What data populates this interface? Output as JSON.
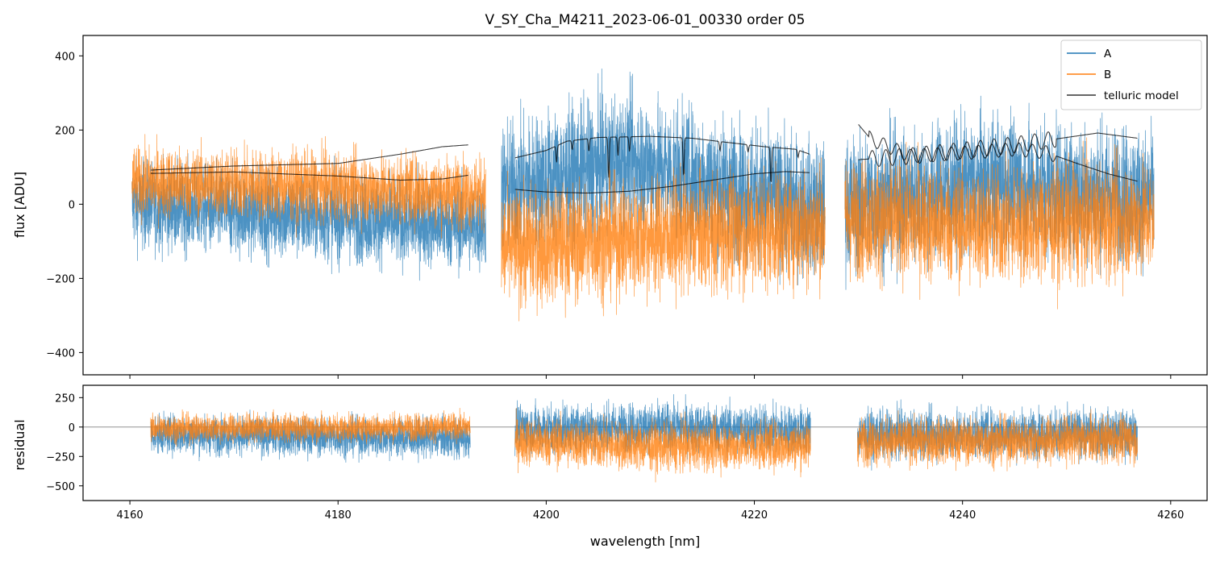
{
  "title": "V_SY_Cha_M4211_2023-06-01_00330  order 05",
  "colors": {
    "A": "#1f77b4",
    "B": "#ff7f0e",
    "telluric": "#000000",
    "zero_line": "#808080",
    "axis": "#000000"
  },
  "chart_data": [
    {
      "type": "line",
      "panel": "flux",
      "title": "V_SY_Cha_M4211_2023-06-01_00330  order 05",
      "ylabel": "flux [ADU]",
      "xlabel": "",
      "xlim": [
        4155.5,
        4263.5
      ],
      "ylim": [
        -460,
        455
      ],
      "xticks": [
        4160,
        4180,
        4200,
        4220,
        4240,
        4260
      ],
      "yticks": [
        -400,
        -200,
        0,
        200,
        400
      ],
      "ytick_labels": [
        "−400",
        "−200",
        "0",
        "200",
        "400"
      ],
      "legend": {
        "position": "top-right",
        "entries": [
          "A",
          "B",
          "telluric model"
        ]
      },
      "segments": [
        {
          "x_range": [
            4160.2,
            4194.2
          ],
          "series": {
            "A": {
              "center": [
                [
                  4160.2,
                  0
                ],
                [
                  4175,
                  -30
                ],
                [
                  4194.2,
                  -60
                ]
              ],
              "amplitude": 150
            },
            "B": {
              "center": [
                [
                  4160.2,
                  60
                ],
                [
                  4175,
                  50
                ],
                [
                  4194.2,
                  30
                ]
              ],
              "amplitude": 120
            }
          }
        },
        {
          "x_range": [
            4195.7,
            4226.8
          ],
          "series": {
            "A": {
              "center": [
                [
                  4195.7,
                  40
                ],
                [
                  4208,
                  120
                ],
                [
                  4226.8,
                  -20
                ]
              ],
              "amplitude": 230
            },
            "B": {
              "center": [
                [
                  4195.7,
                  -120
                ],
                [
                  4208,
                  -90
                ],
                [
                  4226.8,
                  -60
                ]
              ],
              "amplitude": 200
            }
          }
        },
        {
          "x_range": [
            4228.7,
            4258.4
          ],
          "series": {
            "A": {
              "center": [
                [
                  4228.7,
                  0
                ],
                [
                  4243,
                  60
                ],
                [
                  4258.4,
                  20
                ]
              ],
              "amplitude": 230
            },
            "B": {
              "center": [
                [
                  4228.7,
                  -40
                ],
                [
                  4243,
                  -60
                ],
                [
                  4258.4,
                  -40
                ]
              ],
              "amplitude": 200
            }
          }
        }
      ],
      "telluric_model": [
        {
          "upper": [
            [
              4162,
              92
            ],
            [
              4170,
              103
            ],
            [
              4180,
              110
            ],
            [
              4186,
              135
            ],
            [
              4190,
              155
            ],
            [
              4192.5,
              160
            ]
          ],
          "lower": [
            [
              4162,
              83
            ],
            [
              4170,
              87
            ],
            [
              4180,
              76
            ],
            [
              4186,
              65
            ],
            [
              4190,
              68
            ],
            [
              4192.5,
              78
            ]
          ],
          "lines": []
        },
        {
          "upper": [
            [
              4197,
              125
            ],
            [
              4200,
              145
            ],
            [
              4202,
              170
            ],
            [
              4205,
              180
            ],
            [
              4210,
              183
            ],
            [
              4214,
              178
            ],
            [
              4217,
              168
            ],
            [
              4221,
              155
            ],
            [
              4224,
              148
            ],
            [
              4225.3,
              135
            ]
          ],
          "lower": [
            [
              4197,
              40
            ],
            [
              4200,
              33
            ],
            [
              4204,
              30
            ],
            [
              4208,
              35
            ],
            [
              4212,
              48
            ],
            [
              4216,
              65
            ],
            [
              4220,
              82
            ],
            [
              4223,
              88
            ],
            [
              4225.3,
              85
            ]
          ],
          "lines": [
            {
              "x": 4201.0,
              "depth": 45
            },
            {
              "x": 4202.5,
              "depth": 25
            },
            {
              "x": 4204.1,
              "depth": 35
            },
            {
              "x": 4206.0,
              "depth": 110
            },
            {
              "x": 4206.9,
              "depth": 50
            },
            {
              "x": 4208.0,
              "depth": 40
            },
            {
              "x": 4213.2,
              "depth": 105
            },
            {
              "x": 4216.7,
              "depth": 25
            },
            {
              "x": 4219.4,
              "depth": 20
            },
            {
              "x": 4221.6,
              "depth": 100
            },
            {
              "x": 4224.2,
              "depth": 20
            }
          ]
        },
        {
          "upper": [
            [
              4230,
              120
            ],
            [
              4235,
              130
            ],
            [
              4240,
              145
            ],
            [
              4245,
              160
            ],
            [
              4250,
              180
            ],
            [
              4253,
              192
            ],
            [
              4256.8,
              178
            ]
          ],
          "lower": [
            [
              4230,
              215
            ],
            [
              4231.2,
              175
            ],
            [
              4235,
              130
            ],
            [
              4240,
              138
            ],
            [
              4245,
              148
            ],
            [
              4248,
              140
            ],
            [
              4251,
              110
            ],
            [
              4254,
              82
            ],
            [
              4256.8,
              62
            ]
          ],
          "lines": []
        }
      ]
    },
    {
      "type": "line",
      "panel": "residual",
      "title": "",
      "ylabel": "residual",
      "xlabel": "wavelength [nm]",
      "xlim": [
        4155.5,
        4263.5
      ],
      "ylim": [
        -625,
        355
      ],
      "xticks": [
        4160,
        4180,
        4200,
        4220,
        4240,
        4260
      ],
      "xtick_labels": [
        "4160",
        "4180",
        "4200",
        "4220",
        "4240",
        "4260"
      ],
      "yticks": [
        -500,
        -250,
        0,
        250
      ],
      "ytick_labels": [
        "−500",
        "−250",
        "0",
        "250"
      ],
      "zero_line": 0,
      "segments": [
        {
          "x_range": [
            4162.0,
            4192.7
          ],
          "series": {
            "A": {
              "center": [
                [
                  4162,
                  -60
                ],
                [
                  4177,
                  -80
                ],
                [
                  4192.7,
                  -100
                ]
              ],
              "amplitude": 210
            },
            "B": {
              "center": [
                [
                  4162,
                  -10
                ],
                [
                  4177,
                  -5
                ],
                [
                  4192.7,
                  0
                ]
              ],
              "amplitude": 150
            }
          }
        },
        {
          "x_range": [
            4197.0,
            4225.4
          ],
          "series": {
            "A": {
              "center": [
                [
                  4197,
                  -10
                ],
                [
                  4211,
                  0
                ],
                [
                  4225.4,
                  -30
                ]
              ],
              "amplitude": 260
            },
            "B": {
              "center": [
                [
                  4197,
                  -120
                ],
                [
                  4211,
                  -170
                ],
                [
                  4225.4,
                  -150
                ]
              ],
              "amplitude": 260
            }
          }
        },
        {
          "x_range": [
            4229.9,
            4256.8
          ],
          "series": {
            "A": {
              "center": [
                [
                  4229.9,
                  -70
                ],
                [
                  4243,
                  -50
                ],
                [
                  4256.8,
                  -60
                ]
              ],
              "amplitude": 260
            },
            "B": {
              "center": [
                [
                  4229.9,
                  -120
                ],
                [
                  4243,
                  -120
                ],
                [
                  4256.8,
                  -100
                ]
              ],
              "amplitude": 250
            }
          }
        }
      ]
    }
  ]
}
